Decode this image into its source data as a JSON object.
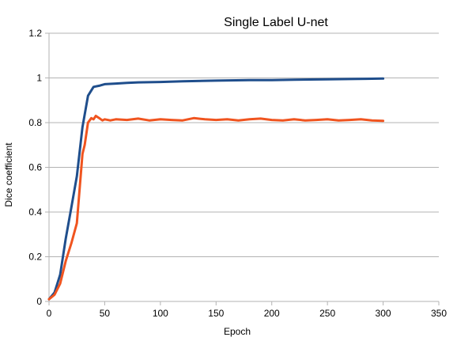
{
  "chart_data": {
    "type": "line",
    "title": "Single Label U-net",
    "xlabel": "Epoch",
    "ylabel": "Dice coefficient",
    "xlim": [
      0,
      350
    ],
    "ylim": [
      0,
      1.2
    ],
    "xticks": [
      0,
      50,
      100,
      150,
      200,
      250,
      300,
      350
    ],
    "yticks": [
      0,
      0.2,
      0.4,
      0.6,
      0.8,
      1,
      1.2
    ],
    "ytick_labels": [
      "0",
      "0.2",
      "0.4",
      "0.6",
      "0.8",
      "1",
      "1.2"
    ],
    "grid": "horizontal",
    "series": [
      {
        "color": "#1f4e8c",
        "x": [
          0,
          5,
          10,
          15,
          20,
          25,
          30,
          35,
          40,
          45,
          50,
          60,
          70,
          80,
          100,
          120,
          150,
          180,
          200,
          220,
          250,
          270,
          285,
          300
        ],
        "y": [
          0.01,
          0.04,
          0.12,
          0.28,
          0.42,
          0.56,
          0.78,
          0.92,
          0.96,
          0.965,
          0.972,
          0.975,
          0.978,
          0.98,
          0.982,
          0.985,
          0.988,
          0.99,
          0.99,
          0.992,
          0.994,
          0.995,
          0.996,
          0.997
        ]
      },
      {
        "color": "#f0541f",
        "x": [
          0,
          5,
          10,
          15,
          20,
          25,
          30,
          32,
          35,
          38,
          40,
          42,
          45,
          48,
          50,
          55,
          60,
          70,
          80,
          90,
          100,
          110,
          120,
          130,
          140,
          150,
          160,
          170,
          180,
          190,
          200,
          210,
          220,
          230,
          240,
          250,
          260,
          270,
          280,
          290,
          300
        ],
        "y": [
          0.01,
          0.03,
          0.08,
          0.18,
          0.26,
          0.35,
          0.66,
          0.7,
          0.8,
          0.82,
          0.815,
          0.83,
          0.82,
          0.81,
          0.815,
          0.81,
          0.815,
          0.812,
          0.818,
          0.81,
          0.815,
          0.812,
          0.81,
          0.82,
          0.815,
          0.812,
          0.815,
          0.81,
          0.815,
          0.818,
          0.812,
          0.81,
          0.815,
          0.81,
          0.812,
          0.815,
          0.81,
          0.812,
          0.815,
          0.81,
          0.808
        ]
      }
    ]
  }
}
